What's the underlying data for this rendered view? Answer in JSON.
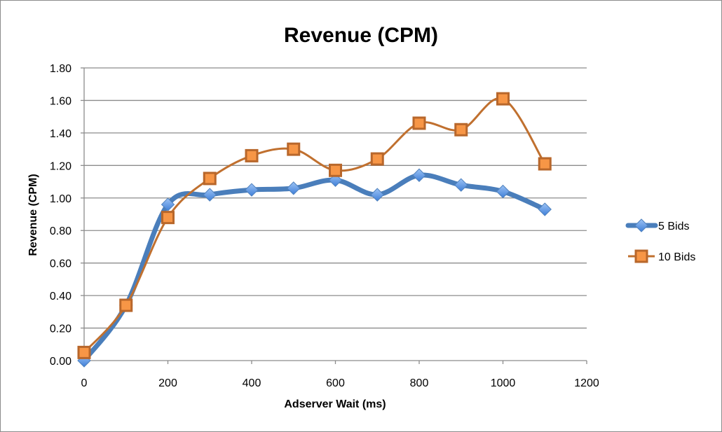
{
  "chart_data": {
    "type": "line",
    "title": "Revenue (CPM)",
    "xlabel": "Adserver Wait (ms)",
    "ylabel": "Revenue (CPM)",
    "xlim": [
      0,
      1200
    ],
    "ylim": [
      0,
      1.8
    ],
    "x_ticks": [
      "0",
      "200",
      "400",
      "600",
      "800",
      "1000",
      "1200"
    ],
    "y_ticks": [
      "0.00",
      "0.20",
      "0.40",
      "0.60",
      "0.80",
      "1.00",
      "1.20",
      "1.40",
      "1.60",
      "1.80"
    ],
    "grid": "horizontal",
    "legend_position": "right",
    "smoothed": true,
    "x": [
      0,
      100,
      200,
      300,
      400,
      500,
      600,
      700,
      800,
      900,
      1000,
      1100
    ],
    "series": [
      {
        "name": "5 Bids",
        "color": "#4a7ebb",
        "marker": "diamond",
        "values": [
          0.0,
          0.34,
          0.96,
          1.02,
          1.05,
          1.06,
          1.11,
          1.02,
          1.14,
          1.08,
          1.04,
          0.93
        ]
      },
      {
        "name": "10 Bids",
        "color": "#c0702f",
        "marker": "square",
        "values": [
          0.05,
          0.34,
          0.88,
          1.12,
          1.26,
          1.3,
          1.17,
          1.24,
          1.46,
          1.42,
          1.61,
          1.21
        ]
      }
    ]
  }
}
